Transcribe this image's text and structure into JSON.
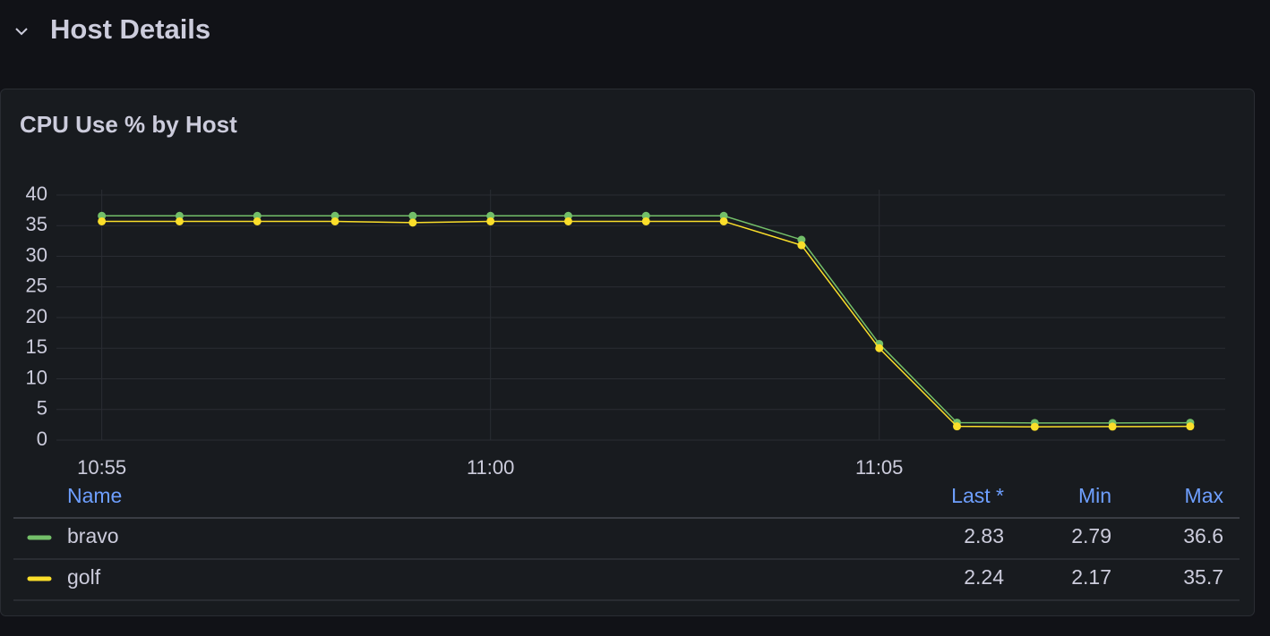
{
  "section": {
    "title": "Host Details"
  },
  "chart_data": {
    "type": "line",
    "title": "CPU Use % by Host",
    "x": [
      "10:55",
      "10:56",
      "10:57",
      "10:58",
      "10:59",
      "11:00",
      "11:01",
      "11:02",
      "11:03",
      "11:04",
      "11:05",
      "11:06",
      "11:07",
      "11:08",
      "11:09"
    ],
    "xlim": [
      "10:54:25",
      "11:09:27"
    ],
    "xticks": [
      "10:55",
      "11:00",
      "11:05"
    ],
    "ylim": [
      0,
      40
    ],
    "yticks": [
      0,
      5,
      10,
      15,
      20,
      25,
      30,
      35,
      40
    ],
    "grid": true,
    "series": [
      {
        "name": "bravo",
        "color": "#73bf69",
        "values": [
          36.6,
          36.6,
          36.6,
          36.6,
          36.6,
          36.6,
          36.6,
          36.6,
          36.6,
          32.7,
          15.7,
          2.85,
          2.8,
          2.79,
          2.83
        ]
      },
      {
        "name": "golf",
        "color": "#fade2a",
        "values": [
          35.7,
          35.7,
          35.7,
          35.7,
          35.5,
          35.7,
          35.7,
          35.7,
          35.7,
          31.8,
          15.0,
          2.24,
          2.17,
          2.2,
          2.24
        ]
      }
    ],
    "legend": {
      "headers": [
        "Name",
        "Last *",
        "Min",
        "Max"
      ],
      "rows": [
        [
          2.83,
          2.79,
          36.6
        ],
        [
          2.24,
          2.17,
          35.7
        ]
      ]
    }
  }
}
